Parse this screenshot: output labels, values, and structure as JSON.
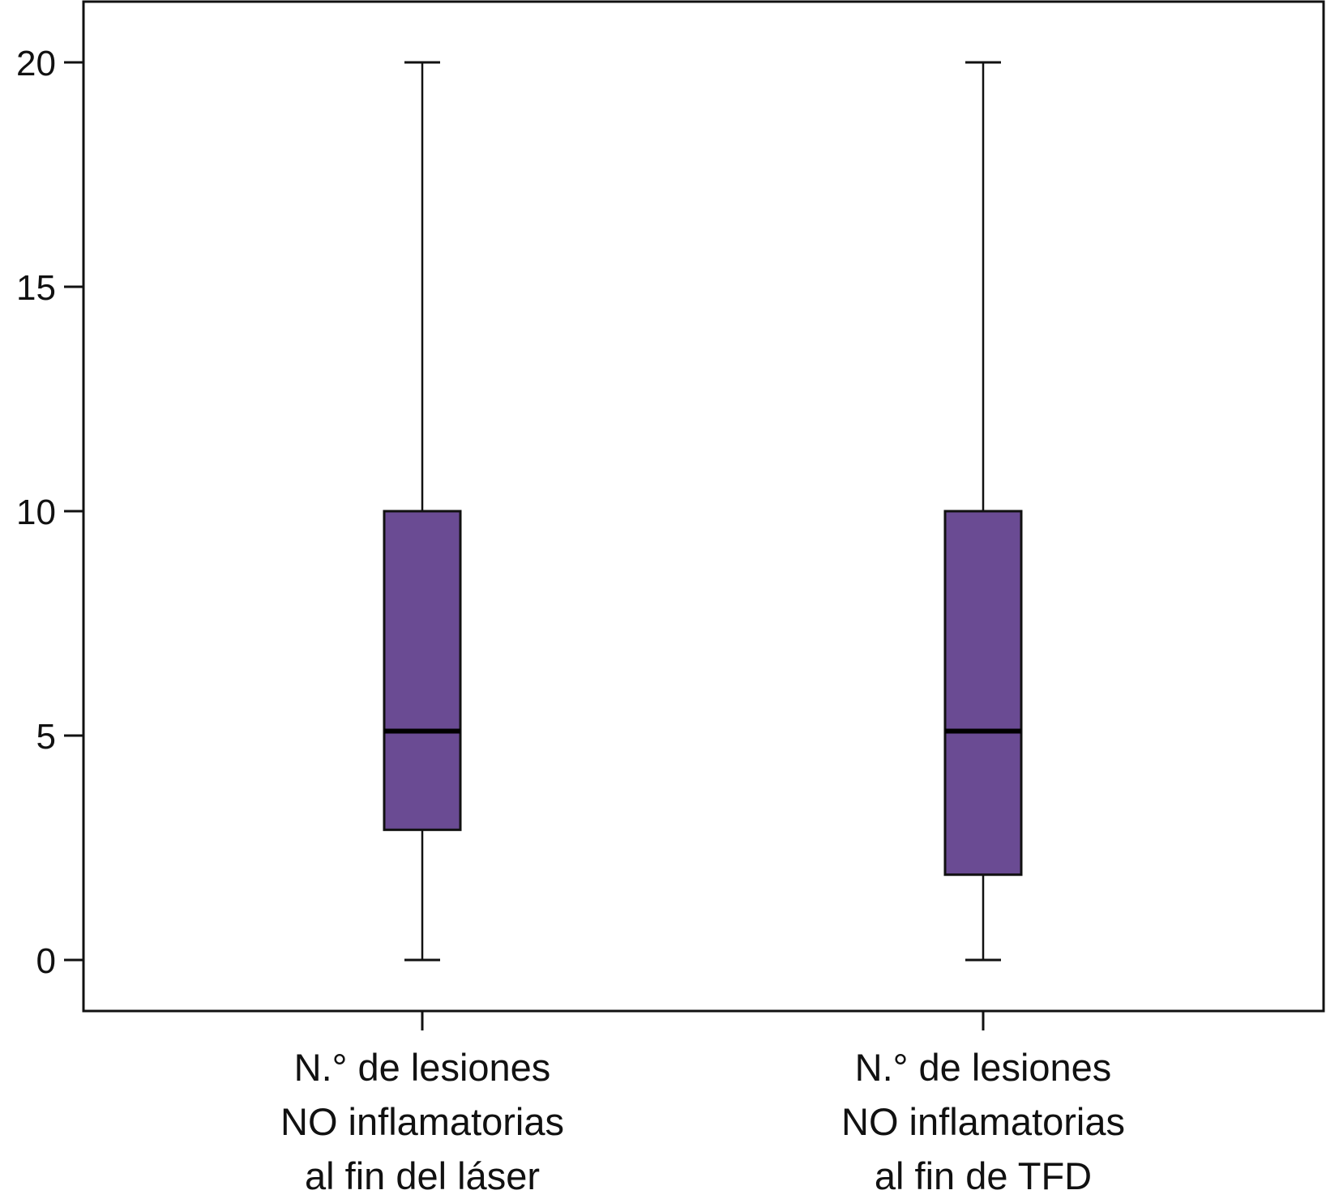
{
  "chart_data": {
    "type": "box",
    "title": "",
    "xlabel": "",
    "ylabel": "",
    "ylim": [
      -1.2,
      21.3
    ],
    "yticks": [
      0,
      5,
      10,
      15,
      20
    ],
    "grid": false,
    "legend": "none",
    "box_color": "#6a4b93",
    "categories": [
      [
        "N.° de lesiones",
        "NO inflamatorias",
        "al fin del láser"
      ],
      [
        "N.° de lesiones",
        "NO inflamatorias",
        "al fin de TFD"
      ]
    ],
    "boxes": [
      {
        "min": 0,
        "q1": 2.9,
        "median": 5.1,
        "q3": 10,
        "max": 20
      },
      {
        "min": 0,
        "q1": 1.9,
        "median": 5.1,
        "q3": 10,
        "max": 20
      }
    ]
  }
}
